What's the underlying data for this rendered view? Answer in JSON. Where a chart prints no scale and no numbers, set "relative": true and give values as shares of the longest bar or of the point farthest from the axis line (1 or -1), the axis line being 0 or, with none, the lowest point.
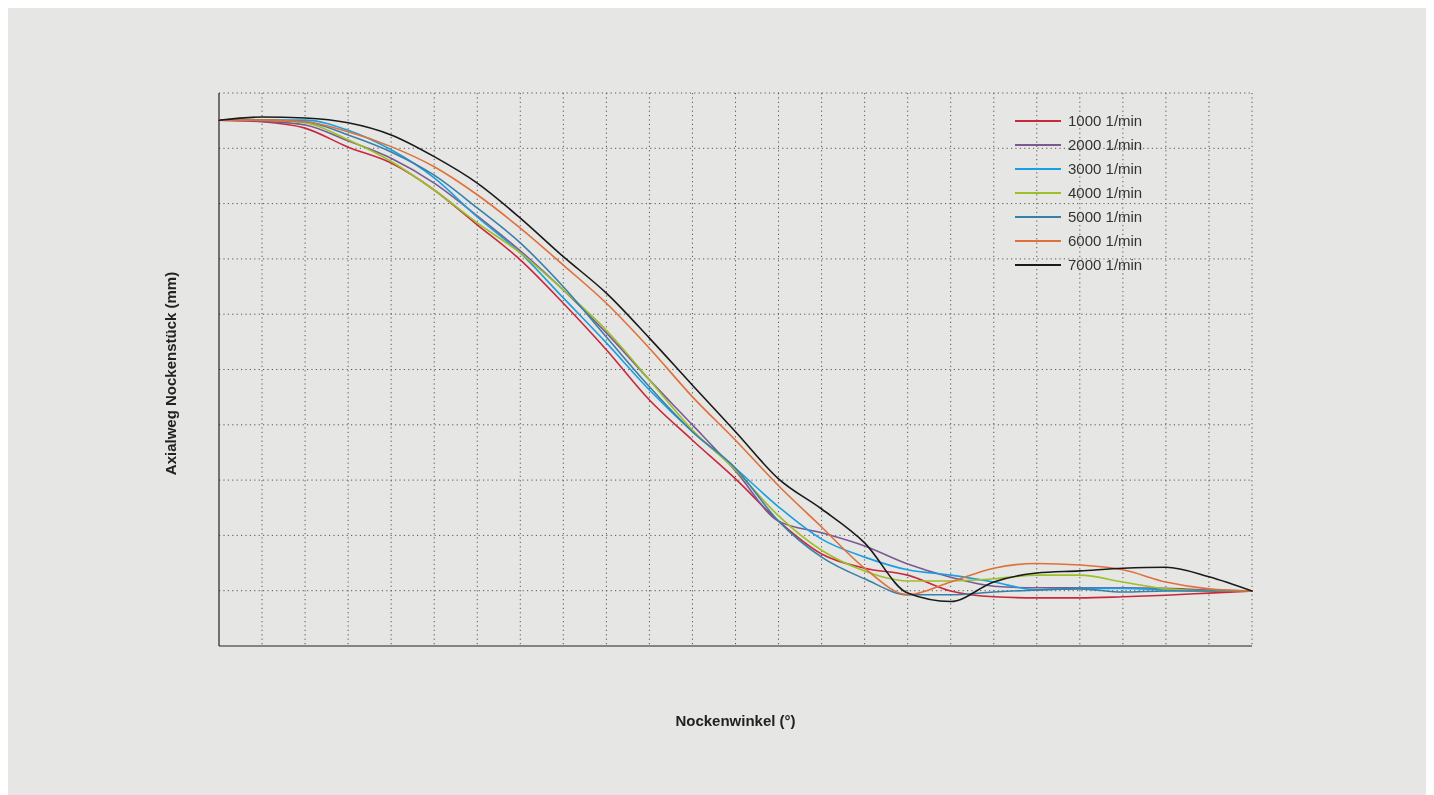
{
  "chart_data": {
    "type": "line",
    "xlabel": "Nockenwinkel (°)",
    "ylabel": "Axialweg Nockenstück (mm)",
    "relative": true,
    "grid": true,
    "legend": "top right",
    "marker": "none",
    "line_style": "solid",
    "categories": [
      null,
      null,
      null,
      null,
      null,
      null,
      null,
      null,
      null,
      null,
      null,
      null,
      null,
      null,
      null,
      null,
      null,
      null,
      null,
      null,
      null,
      null,
      null,
      null,
      null
    ],
    "series": [
      {
        "name": "1000 1/min",
        "color": "#c8283c",
        "values": [
          0.994,
          0.991,
          0.979,
          0.943,
          0.913,
          0.862,
          0.796,
          0.73,
          0.648,
          0.56,
          0.465,
          0.389,
          0.316,
          0.236,
          0.174,
          0.147,
          0.134,
          0.104,
          0.093,
          0.091,
          0.091,
          0.093,
          0.096,
          0.1,
          0.104
        ]
      },
      {
        "name": "2000 1/min",
        "color": "#7b5a93",
        "values": [
          0.994,
          0.992,
          0.985,
          0.955,
          0.922,
          0.875,
          0.813,
          0.747,
          0.673,
          0.592,
          0.503,
          0.418,
          0.331,
          0.236,
          0.214,
          0.189,
          0.155,
          0.13,
          0.113,
          0.11,
          0.11,
          0.11,
          0.109,
          0.106,
          0.104
        ]
      },
      {
        "name": "3000 1/min",
        "color": "#1a9fe0",
        "values": [
          0.994,
          0.994,
          0.994,
          0.975,
          0.938,
          0.885,
          0.811,
          0.743,
          0.658,
          0.573,
          0.484,
          0.405,
          0.336,
          0.263,
          0.202,
          0.168,
          0.144,
          0.134,
          0.121,
          0.106,
          0.109,
          0.109,
          0.106,
          0.104,
          0.104
        ]
      },
      {
        "name": "4000 1/min",
        "color": "#9dbf2a",
        "values": [
          0.994,
          0.994,
          0.989,
          0.957,
          0.916,
          0.862,
          0.8,
          0.743,
          0.673,
          0.597,
          0.503,
          0.408,
          0.333,
          0.246,
          0.181,
          0.142,
          0.123,
          0.123,
          0.127,
          0.134,
          0.134,
          0.121,
          0.108,
          0.104,
          0.104
        ]
      },
      {
        "name": "5000 1/min",
        "color": "#3a7fa8",
        "values": [
          0.994,
          0.994,
          0.991,
          0.966,
          0.934,
          0.89,
          0.828,
          0.762,
          0.679,
          0.584,
          0.49,
          0.405,
          0.336,
          0.236,
          0.168,
          0.127,
          0.097,
          0.097,
          0.102,
          0.106,
          0.108,
          0.102,
          0.104,
          0.104,
          0.104
        ]
      },
      {
        "name": "6000 1/min",
        "color": "#e0703a",
        "values": [
          0.994,
          0.994,
          0.991,
          0.972,
          0.944,
          0.906,
          0.853,
          0.79,
          0.72,
          0.648,
          0.563,
          0.471,
          0.389,
          0.303,
          0.225,
          0.147,
          0.097,
          0.121,
          0.147,
          0.156,
          0.153,
          0.144,
          0.121,
          0.108,
          0.104
        ]
      },
      {
        "name": "7000 1/min",
        "color": "#1a1a1a",
        "values": [
          0.994,
          1.0,
          0.998,
          0.989,
          0.966,
          0.925,
          0.875,
          0.809,
          0.736,
          0.667,
          0.582,
          0.493,
          0.405,
          0.316,
          0.259,
          0.195,
          0.1,
          0.084,
          0.121,
          0.138,
          0.142,
          0.147,
          0.149,
          0.131,
          0.104
        ]
      }
    ]
  }
}
